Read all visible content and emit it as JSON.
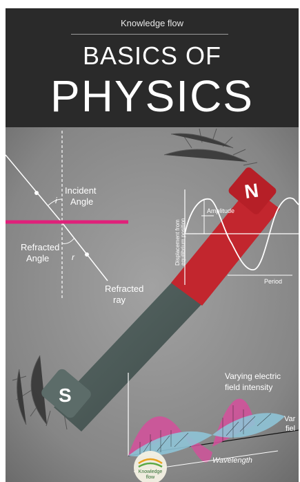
{
  "cover": {
    "publisher": "Knowledge flow",
    "title_line1": "BASICS OF",
    "title_line2": "PHYSICS"
  },
  "refraction": {
    "incident_line1": "Incident",
    "incident_line2": "Angle",
    "incident_symbol": "i",
    "refracted_angle_line1": "Refracted",
    "refracted_angle_line2": "Angle",
    "refracted_symbol": "r",
    "refracted_ray_line1": "Refracted",
    "refracted_ray_line2": "ray"
  },
  "magnet": {
    "north": "N",
    "south": "S"
  },
  "wave": {
    "amplitude": "Amplitude",
    "period": "Period",
    "ylabel_line1": "Displacement from",
    "ylabel_line2": "equilibrium position"
  },
  "em_wave": {
    "electric_line1": "Varying electric",
    "electric_line2": "field intensity",
    "magnetic_line1": "Var",
    "magnetic_line2": "fiel",
    "wavelength": "Wavelength"
  },
  "logo": {
    "line1": "Knowledge",
    "line2": "flow"
  },
  "colors": {
    "header_bg": "#2a2a2a",
    "magnet_red": "#c2262e",
    "accent_pink": "#e0207a",
    "wave_pink": "#d0529a",
    "wave_blue": "#8ec3d6"
  }
}
